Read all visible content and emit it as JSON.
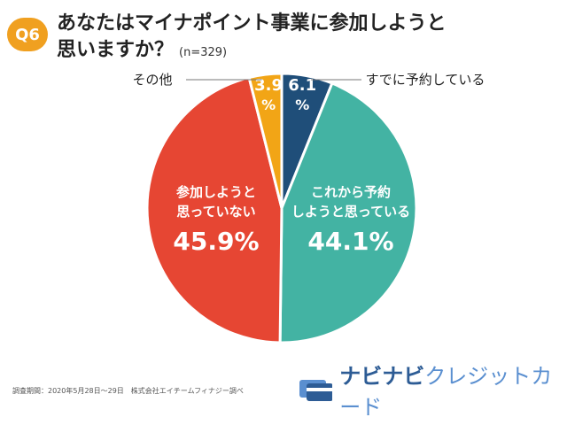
{
  "badge": "Q6",
  "title_line1": "あなたはマイナポイント事業に参加しようと",
  "title_line2": "思いますか？",
  "sample": "(n=329)",
  "footer_note": "調査期間：2020年5月28日〜29日　株式会社エイチームフィナジー調べ",
  "logo": {
    "main": "ナビナビ",
    "accent": "クレジットカード"
  },
  "colors": {
    "reserved": "#1f4e79",
    "plan": "#43b3a3",
    "not": "#e64633",
    "other": "#f2a516"
  },
  "chart_data": {
    "type": "pie",
    "slices": [
      {
        "label": "すでに予約している",
        "value": 6.1,
        "value_text_1": "6.1",
        "value_text_2": "%"
      },
      {
        "label_1": "これから予約",
        "label_2": "しようと思っている",
        "value": 44.1,
        "value_text": "44.1%"
      },
      {
        "label_1": "参加しようと",
        "label_2": "思っていない",
        "value": 45.9,
        "value_text": "45.9%"
      },
      {
        "label": "その他",
        "value": 3.9,
        "value_text_1": "3.9",
        "value_text_2": "%"
      }
    ]
  }
}
